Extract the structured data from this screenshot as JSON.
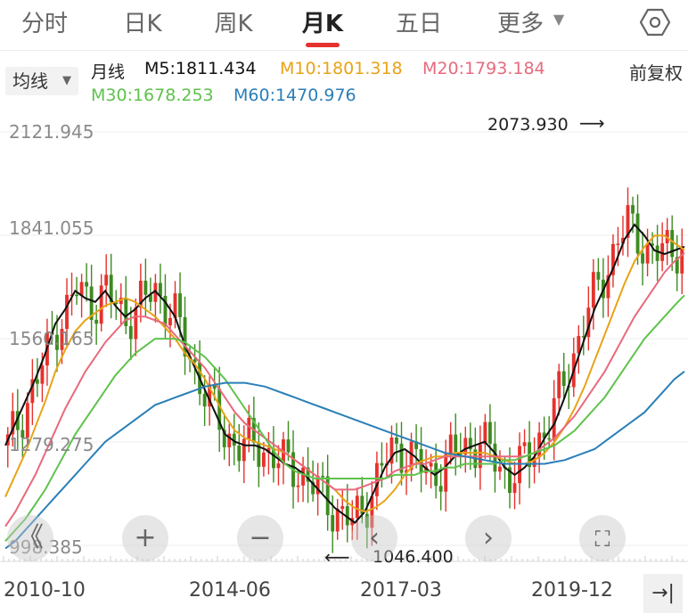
{
  "tabs": [
    {
      "label": "分时"
    },
    {
      "label": "日K"
    },
    {
      "label": "周K"
    },
    {
      "label": "月K"
    },
    {
      "label": "五日"
    },
    {
      "label": "更多"
    }
  ],
  "ma_bar": {
    "selector": "均线",
    "period": "月线",
    "m5": "M5:1811.434",
    "m10": "M10:1801.318",
    "m20": "M20:1793.184",
    "m30": "M30:1678.253",
    "m60": "M60:1470.976",
    "adjust": "前复权"
  },
  "colors": {
    "up": "#e5322d",
    "down": "#3d8b20",
    "m5": "#111111",
    "m10": "#e8a317",
    "m20": "#e86a7d",
    "m30": "#5fc24c",
    "m60": "#2a7fb8",
    "accent": "#e5322d"
  },
  "chart_data": {
    "type": "candlestick",
    "y_ticks": [
      "2121.945",
      "1841.055",
      "1560.165",
      "1279.275",
      "998.385"
    ],
    "x_ticks": [
      "2010-10",
      "2014-06",
      "2017-03",
      "2019-12"
    ],
    "ylim": [
      998.385,
      2121.945
    ],
    "high_label": "2073.930",
    "low_label": "1046.400",
    "series": [
      {
        "name": "M5",
        "values": [
          1270,
          1330,
          1390,
          1450,
          1520,
          1600,
          1640,
          1690,
          1670,
          1660,
          1690,
          1650,
          1620,
          1640,
          1670,
          1690,
          1660,
          1620,
          1540,
          1480,
          1420,
          1360,
          1300,
          1280,
          1270,
          1270,
          1260,
          1240,
          1220,
          1210,
          1190,
          1160,
          1130,
          1100,
          1080,
          1060,
          1090,
          1150,
          1210,
          1250,
          1260,
          1240,
          1210,
          1190,
          1210,
          1240,
          1260,
          1270,
          1280,
          1250,
          1210,
          1190,
          1210,
          1240,
          1290,
          1330,
          1400,
          1480,
          1560,
          1640,
          1700,
          1760,
          1830,
          1870,
          1840,
          1800,
          1790,
          1800,
          1810
        ]
      },
      {
        "name": "M10",
        "values": [
          1130,
          1190,
          1250,
          1320,
          1390,
          1470,
          1530,
          1580,
          1610,
          1630,
          1650,
          1660,
          1670,
          1660,
          1640,
          1620,
          1590,
          1560,
          1520,
          1490,
          1450,
          1400,
          1350,
          1310,
          1290,
          1280,
          1270,
          1260,
          1250,
          1230,
          1210,
          1190,
          1170,
          1150,
          1120,
          1100,
          1090,
          1100,
          1120,
          1150,
          1190,
          1220,
          1230,
          1240,
          1240,
          1250,
          1250,
          1250,
          1250,
          1240,
          1230,
          1220,
          1220,
          1230,
          1250,
          1280,
          1320,
          1370,
          1430,
          1500,
          1570,
          1640,
          1710,
          1770,
          1810,
          1840,
          1840,
          1820,
          1801
        ]
      },
      {
        "name": "M20",
        "values": [
          1050,
          1090,
          1140,
          1190,
          1250,
          1310,
          1370,
          1420,
          1470,
          1510,
          1550,
          1580,
          1610,
          1620,
          1620,
          1610,
          1600,
          1570,
          1540,
          1510,
          1480,
          1440,
          1400,
          1360,
          1330,
          1310,
          1290,
          1270,
          1250,
          1230,
          1210,
          1190,
          1170,
          1150,
          1150,
          1150,
          1160,
          1170,
          1180,
          1200,
          1210,
          1220,
          1220,
          1230,
          1240,
          1240,
          1240,
          1240,
          1240,
          1240,
          1240,
          1240,
          1240,
          1250,
          1270,
          1290,
          1320,
          1350,
          1390,
          1430,
          1470,
          1520,
          1570,
          1620,
          1660,
          1700,
          1740,
          1770,
          1793
        ]
      },
      {
        "name": "M30",
        "values": [
          1010,
          1040,
          1070,
          1110,
          1150,
          1200,
          1250,
          1300,
          1340,
          1380,
          1420,
          1460,
          1490,
          1520,
          1540,
          1560,
          1560,
          1560,
          1550,
          1530,
          1510,
          1480,
          1450,
          1410,
          1370,
          1330,
          1290,
          1250,
          1220,
          1200,
          1190,
          1180,
          1180,
          1180,
          1180,
          1180,
          1180,
          1180,
          1180,
          1190,
          1190,
          1190,
          1200,
          1200,
          1210,
          1210,
          1220,
          1220,
          1220,
          1220,
          1230,
          1230,
          1240,
          1250,
          1260,
          1270,
          1290,
          1310,
          1340,
          1370,
          1400,
          1440,
          1480,
          1520,
          1560,
          1590,
          1620,
          1650,
          1678
        ]
      },
      {
        "name": "M60",
        "values": [
          990,
          1010,
          1040,
          1070,
          1100,
          1130,
          1160,
          1190,
          1220,
          1250,
          1280,
          1300,
          1320,
          1340,
          1360,
          1380,
          1390,
          1400,
          1410,
          1420,
          1430,
          1435,
          1440,
          1440,
          1440,
          1435,
          1430,
          1420,
          1410,
          1400,
          1390,
          1380,
          1370,
          1360,
          1350,
          1340,
          1330,
          1320,
          1310,
          1300,
          1290,
          1280,
          1270,
          1260,
          1250,
          1245,
          1240,
          1235,
          1230,
          1225,
          1220,
          1220,
          1220,
          1220,
          1220,
          1225,
          1230,
          1240,
          1250,
          1260,
          1280,
          1300,
          1320,
          1340,
          1360,
          1390,
          1420,
          1450,
          1471
        ]
      }
    ]
  },
  "buttons": {
    "first": "《",
    "zoom_in": "+",
    "zoom_out": "−",
    "prev": "‹",
    "next": "›",
    "fullscreen": "⛶",
    "end": "→|"
  }
}
